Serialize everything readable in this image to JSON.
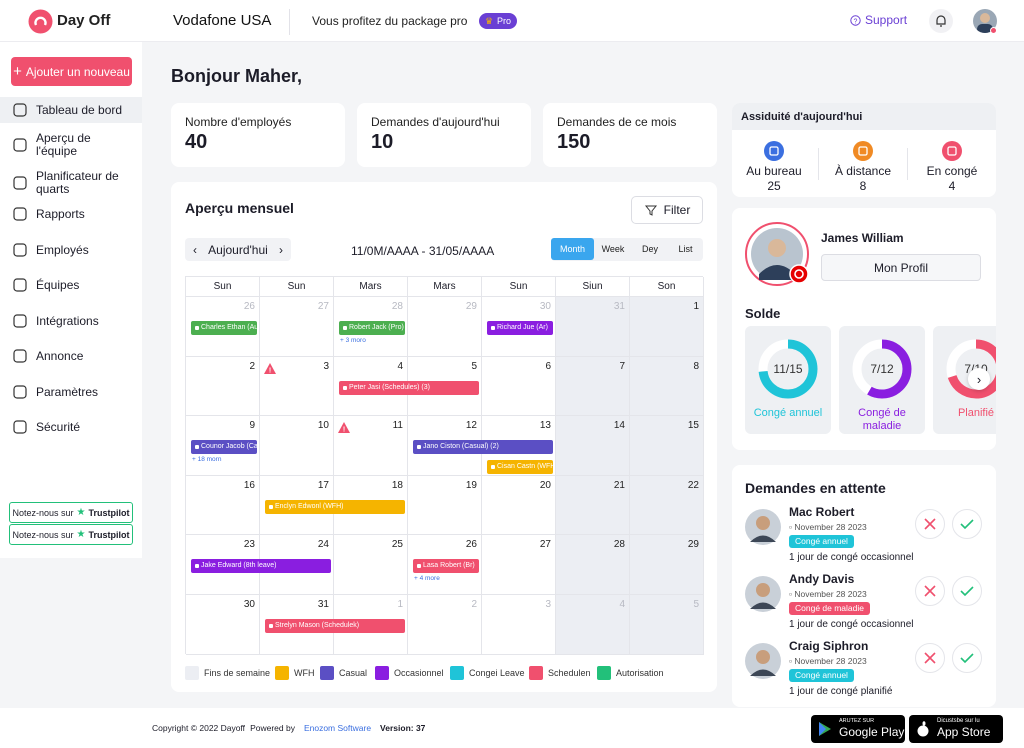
{
  "header": {
    "brand": "Day Off",
    "company": "Vodafone USA",
    "package": "Vous profitez du package pro",
    "badge": "Pro",
    "support": "Support"
  },
  "sidebar": {
    "add_button": "Ajouter un nouveau",
    "items": [
      "Tableau de bord",
      "Aperçu de l'équipe",
      "Planificateur de quarts",
      "Rapports",
      "Employés",
      "Équipes",
      "Intégrations",
      "Annonce",
      "Paramètres",
      "Sécurité"
    ],
    "trustpilot": [
      {
        "text": "Notez-nous sur",
        "brand": "Trustpilot"
      },
      {
        "text": "Notez-nous sur",
        "brand": "Trustpilot"
      }
    ]
  },
  "greeting": "Bonjour Maher,",
  "stats": [
    {
      "label": "Nombre d'employés",
      "value": 40
    },
    {
      "label": "Demandes d'aujourd'hui",
      "value": 10
    },
    {
      "label": "Demandes de ce mois",
      "value": 150
    }
  ],
  "attendance": {
    "title": "Assiduité d'aujourd'hui",
    "items": [
      {
        "label": "Au bureau",
        "value": 25,
        "color": "#3b6fe0"
      },
      {
        "label": "À distance",
        "value": 8,
        "color": "#f08a24"
      },
      {
        "label": "En congé",
        "value": 4,
        "color": "#f0506e"
      }
    ]
  },
  "calendar": {
    "title": "Aperçu mensuel",
    "filter": "Filter",
    "today": "Aujourd'hui",
    "range": "11/0M/AAAA - 31/05/AAAA",
    "views": [
      "Month",
      "Week",
      "Dey",
      "List"
    ],
    "weekdays": [
      "Sun",
      "Sun",
      "Mars",
      "Mars",
      "Sun",
      "Siun",
      "Son"
    ],
    "weeks": [
      {
        "days": [
          {
            "day": 26,
            "events": [
              {
                "label": "Charles Ethan (Autorisation)",
                "color": "#4caf50"
              }
            ]
          },
          {
            "day": 27
          },
          {
            "day": 28,
            "events": [
              {
                "label": "Robert Jack (Pro)",
                "color": "#4caf50"
              }
            ],
            "more": "+ 3 moro"
          },
          {
            "day": 29
          },
          {
            "day": 30,
            "events": [
              {
                "label": "Richard Jue (Ar)",
                "color": "#8a1ee0"
              }
            ]
          },
          {
            "day": 31
          },
          {
            "day": 1
          }
        ]
      },
      {
        "days": [
          {
            "day": 2
          },
          {
            "day": 3,
            "alert": true
          },
          {
            "day": 4,
            "events": [
              {
                "label": "Peter Jasi (Schedules) (3)",
                "color": "#f0506e"
              }
            ]
          },
          {
            "day": 5
          },
          {
            "day": 6
          },
          {
            "day": 7
          },
          {
            "day": 8
          }
        ]
      },
      {
        "days": [
          {
            "day": 9,
            "events": [
              {
                "label": "Counor Jacob (Casual)",
                "color": "#5b4fc4"
              }
            ],
            "more": "+ 18 morn"
          },
          {
            "day": 10
          },
          {
            "day": 11,
            "alert": true
          },
          {
            "day": 12,
            "events": [
              {
                "label": "Jano Ciston (Casual) (2)",
                "color": "#5b4fc4"
              }
            ]
          },
          {
            "day": 13,
            "events": [
              {
                "label": "Cisan Castn (WFH)",
                "color": "#f5b400"
              }
            ]
          },
          {
            "day": 14
          },
          {
            "day": 15
          }
        ]
      },
      {
        "days": [
          {
            "day": 16
          },
          {
            "day": 17,
            "events": [
              {
                "label": "Enclyn Edwonl (WFH)",
                "color": "#f5b400"
              }
            ]
          },
          {
            "day": 18
          },
          {
            "day": 19
          },
          {
            "day": 20
          },
          {
            "day": 21
          },
          {
            "day": 22
          }
        ]
      },
      {
        "days": [
          {
            "day": 23,
            "events": [
              {
                "label": "Jake Edward (8th leave)",
                "color": "#8a1ee0"
              }
            ]
          },
          {
            "day": 24
          },
          {
            "day": 25
          },
          {
            "day": 26,
            "events": [
              {
                "label": "Lasa Robert (Br)",
                "color": "#f0506e"
              }
            ],
            "more": "+ 4 more"
          },
          {
            "day": 27
          },
          {
            "day": 28
          },
          {
            "day": 29
          }
        ]
      },
      {
        "days": [
          {
            "day": 30
          },
          {
            "day": 31,
            "events": [
              {
                "label": "Strelyn Mason (Schedulek)",
                "color": "#f0506e"
              }
            ]
          },
          {
            "day": 1
          },
          {
            "day": 2
          },
          {
            "day": 3
          },
          {
            "day": 4
          },
          {
            "day": 5
          }
        ]
      }
    ],
    "legend": [
      {
        "name": "Fins de semaine",
        "color": "#eceef3"
      },
      {
        "name": "WFH",
        "color": "#f5b400"
      },
      {
        "name": "Casual",
        "color": "#5b4fc4"
      },
      {
        "name": "Occasionnel",
        "color": "#8a1ee0"
      },
      {
        "name": "Congei Leave",
        "color": "#1fc4d8"
      },
      {
        "name": "Schedulen",
        "color": "#f0506e"
      },
      {
        "name": "Autorisation",
        "color": "#22c07a"
      }
    ]
  },
  "profile": {
    "name": "James William",
    "button": "Mon Profil",
    "balance_title": "Solde",
    "balances": [
      {
        "label": "11/15",
        "used": 11,
        "total": 15,
        "name": "Congé annuel",
        "color": "#1fc4d8"
      },
      {
        "label": "7/12",
        "used": 7,
        "total": 12,
        "name": "Congé de maladie",
        "color": "#8a1ee0"
      },
      {
        "label": "7/10",
        "used": 7,
        "total": 10,
        "name": "Planifié",
        "color": "#f0506e"
      }
    ]
  },
  "pending": {
    "title": "Demandes en attente",
    "items": [
      {
        "name": "Mac Robert",
        "date": "November 28 2023",
        "type": "Congé annuel",
        "type_color": "#1fc4d8",
        "description": "1 jour de congé occasionnel"
      },
      {
        "name": "Andy Davis",
        "date": "November 28 2023",
        "type": "Congé de maladie",
        "type_color": "#f0506e",
        "description": "1 jour de congé occasionnel"
      },
      {
        "name": "Craig Siphron",
        "date": "November 28 2023",
        "type": "Congé annuel",
        "type_color": "#1fc4d8",
        "description": "1 jour de congé planifié"
      }
    ]
  },
  "footer": {
    "copyright": "Copyright © 2022 Dayoff",
    "powered": "Powered by",
    "company": "Enozom Software",
    "version": "Version: 37",
    "google_small": "ARUTEZ SUR",
    "google_big": "Google Play",
    "apple_small": "Dicustsbe sur lu",
    "apple_big": "App Store"
  }
}
